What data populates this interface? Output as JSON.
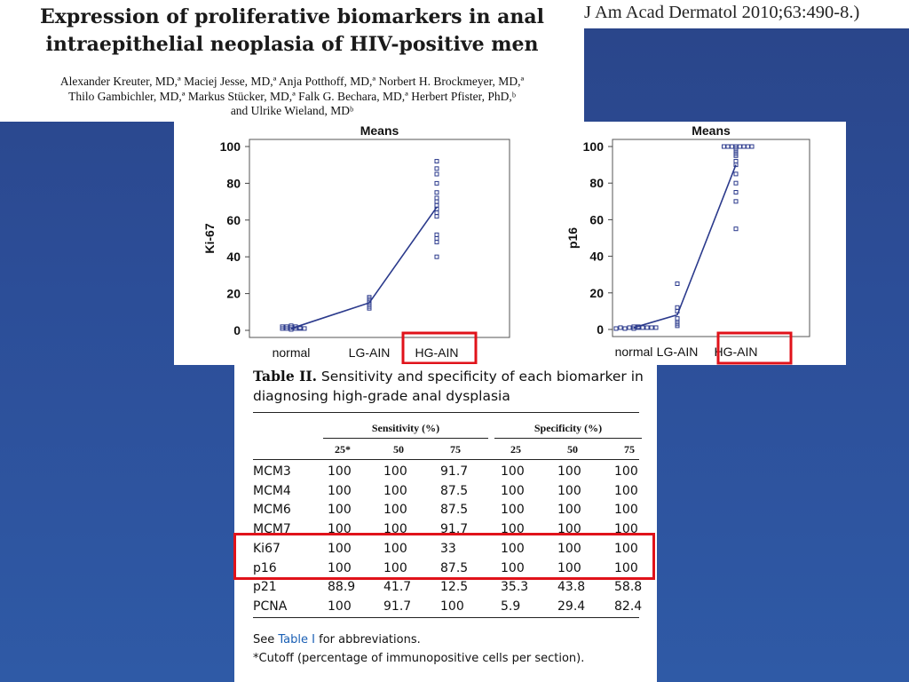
{
  "paper": {
    "title_line1": "Expression of proliferative biomarkers in anal",
    "title_line2": "intraepithelial neoplasia of HIV-positive men",
    "authors_line1": "Alexander Kreuter, MD,ª Maciej Jesse, MD,ª Anja Potthoff, MD,ª Norbert H. Brockmeyer, MD,ª",
    "authors_line2": "Thilo Gambichler, MD,ª Markus Stücker, MD,ª Falk G. Bechara, MD,ª Herbert Pfister, PhD,ᵇ",
    "authors_line3": "and Ulrike Wieland, MDᵇ",
    "journal": "J Am Acad Dermatol 2010;63:490-8.)"
  },
  "colors": {
    "marker": "#2b3a8c",
    "highlight": "#e0121a",
    "background": "#2c4d97"
  },
  "chart_data": [
    {
      "type": "scatter",
      "title": "Means",
      "ylabel": "Ki-67",
      "xlabel": "",
      "ylim": [
        0,
        100
      ],
      "yticks": [
        "0",
        "20",
        "40",
        "60",
        "80",
        "100"
      ],
      "categories": [
        "normal",
        "LG-AIN",
        "HG-AIN"
      ],
      "highlighted_category": "HG-AIN",
      "means": [
        1,
        15,
        67
      ],
      "points": [
        [
          0.5,
          1,
          1,
          1.5,
          2,
          2.5,
          2,
          1,
          1.5,
          2,
          1,
          1
        ],
        [
          12,
          13,
          14,
          16,
          17,
          18,
          15
        ],
        [
          40,
          48,
          50,
          52,
          62,
          64,
          66,
          68,
          70,
          72,
          75,
          80,
          85,
          88,
          92
        ]
      ]
    },
    {
      "type": "scatter",
      "title": "Means",
      "ylabel": "p16",
      "xlabel": "",
      "ylim": [
        0,
        100
      ],
      "yticks": [
        "0",
        "20",
        "40",
        "60",
        "80",
        "100"
      ],
      "categories": [
        "normal",
        "LG-AIN",
        "HG-AIN"
      ],
      "highlighted_category": "HG-AIN",
      "means": [
        1,
        8,
        90
      ],
      "points": [
        [
          0.5,
          1,
          1,
          1.5,
          1,
          0.5,
          1,
          1.5,
          1,
          1,
          0.5,
          1
        ],
        [
          2,
          3,
          4,
          6,
          10,
          12,
          25
        ],
        [
          55,
          70,
          75,
          80,
          85,
          90,
          92,
          95,
          96,
          97,
          98,
          99,
          100,
          100,
          100,
          100,
          100,
          100,
          100,
          100
        ]
      ]
    }
  ],
  "table": {
    "caption_bold": "Table II.",
    "caption_rest": " Sensitivity and specificity of each biomarker in diagnosing high-grade anal dysplasia",
    "group_sensitivity": "Sensitivity (%)",
    "group_specificity": "Specificity (%)",
    "cutoffs": [
      "25*",
      "50",
      "75",
      "25",
      "50",
      "75"
    ],
    "rows": [
      {
        "name": "MCM3",
        "values": [
          "100",
          "100",
          "91.7",
          "100",
          "100",
          "100"
        ]
      },
      {
        "name": "MCM4",
        "values": [
          "100",
          "100",
          "87.5",
          "100",
          "100",
          "100"
        ]
      },
      {
        "name": "MCM6",
        "values": [
          "100",
          "100",
          "87.5",
          "100",
          "100",
          "100"
        ]
      },
      {
        "name": "MCM7",
        "values": [
          "100",
          "100",
          "91.7",
          "100",
          "100",
          "100"
        ]
      },
      {
        "name": "Ki67",
        "values": [
          "100",
          "100",
          "33",
          "100",
          "100",
          "100"
        ]
      },
      {
        "name": "p16",
        "values": [
          "100",
          "100",
          "87.5",
          "100",
          "100",
          "100"
        ]
      },
      {
        "name": "p21",
        "values": [
          "88.9",
          "41.7",
          "12.5",
          "35.3",
          "43.8",
          "58.8"
        ]
      },
      {
        "name": "PCNA",
        "values": [
          "100",
          "91.7",
          "100",
          "5.9",
          "29.4",
          "82.4"
        ]
      }
    ],
    "highlighted_rows": [
      "Ki67",
      "p16"
    ],
    "note_prefix": "See ",
    "note_link": "Table I",
    "note_suffix": " for abbreviations.",
    "footnote": "*Cutoff (percentage of immunopositive cells per section)."
  }
}
